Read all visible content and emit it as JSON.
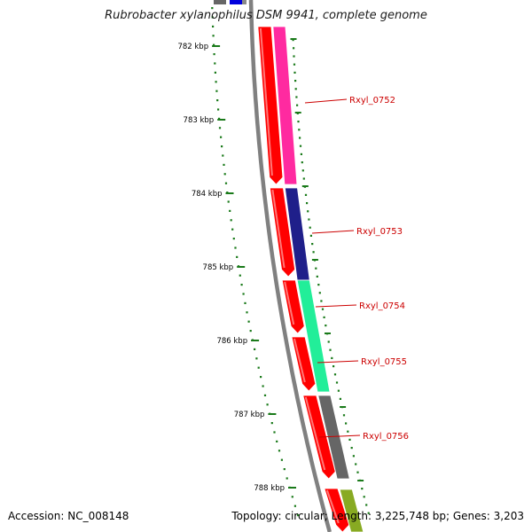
{
  "title": "Rubrobacter xylanophilus DSM 9941, complete genome",
  "accession": "Accession: NC_008148",
  "topology_summary": "Topology: circular; Length: 3,225,748 bp; Genes: 3,203",
  "colors": {
    "tick": "#1a7a1a",
    "label_line": "#cc0000",
    "label_text": "#cc0000",
    "backbone": "#808080",
    "reverse_strand": "#ff0000"
  },
  "scale": {
    "unit": "kbp",
    "ticks": [
      {
        "kbp": 782,
        "label": "782 kbp"
      },
      {
        "kbp": 783,
        "label": "783 kbp"
      },
      {
        "kbp": 784,
        "label": "784 kbp"
      },
      {
        "kbp": 785,
        "label": "785 kbp"
      },
      {
        "kbp": 786,
        "label": "786 kbp"
      },
      {
        "kbp": 787,
        "label": "787 kbp"
      },
      {
        "kbp": 788,
        "label": "788 kbp"
      }
    ]
  },
  "genes": [
    {
      "label": "Rxyl_0752",
      "strand": "forward",
      "color": "#ff2aa0"
    },
    {
      "label": "Rxyl_0753",
      "strand": "forward",
      "color": "#1f1f8a"
    },
    {
      "label": "Rxyl_0754",
      "strand": "forward",
      "color": "#22ee99"
    },
    {
      "label": "Rxyl_0755",
      "strand": "forward",
      "color": "#22ee99"
    },
    {
      "label": "Rxyl_0756",
      "strand": "forward",
      "color": "#666666"
    }
  ]
}
